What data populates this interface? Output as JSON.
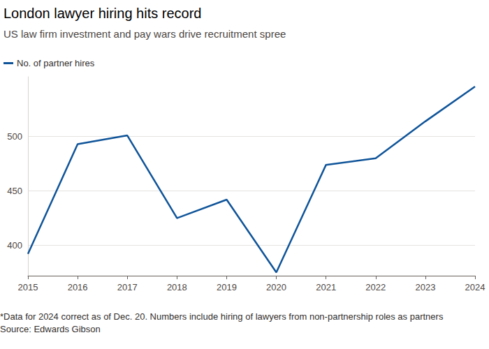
{
  "chart_data": {
    "type": "line",
    "title": "London lawyer hiring hits record",
    "subtitle": "US law firm investment and pay wars drive recruitment spree",
    "categories": [
      "2015",
      "2016",
      "2017",
      "2018",
      "2019",
      "2020",
      "2021",
      "2022",
      "2023",
      "2024"
    ],
    "series": [
      {
        "name": "No. of partner hires",
        "color": "#0f5499",
        "values": [
          392,
          493,
          501,
          425,
          442,
          375,
          474,
          480,
          514,
          546
        ]
      }
    ],
    "ylim": [
      372,
      555
    ],
    "yticks": [
      400,
      450,
      500
    ],
    "grid": true,
    "legend": "top-left",
    "footnote": "*Data for 2024 correct as of Dec. 20. Numbers include hiring of lawyers from non-partnership roles as partners",
    "source": "Source: Edwards Gibson"
  }
}
